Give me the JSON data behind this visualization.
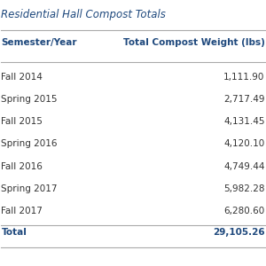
{
  "title": "Residential Hall Compost Totals",
  "col1_header": "Semester/Year",
  "col2_header": "Total Compost Weight (lbs)",
  "rows": [
    [
      "Fall 2014",
      "1,111.90"
    ],
    [
      "Spring 2015",
      "2,717.49"
    ],
    [
      "Fall 2015",
      "4,131.45"
    ],
    [
      "Spring 2016",
      "4,120.10"
    ],
    [
      "Fall 2016",
      "4,749.44"
    ],
    [
      "Spring 2017",
      "5,982.28"
    ],
    [
      "Fall 2017",
      "6,280.60"
    ]
  ],
  "total_label": "Total",
  "total_value": "29,105.26",
  "title_color": "#1f497d",
  "header_color": "#1f497d",
  "text_color": "#333333",
  "total_text_color": "#1f497d",
  "bg_color": "#ffffff",
  "line_color": "#aaaaaa",
  "title_fontsize": 8.5,
  "header_fontsize": 7.5,
  "row_fontsize": 7.5,
  "total_fontsize": 7.5
}
